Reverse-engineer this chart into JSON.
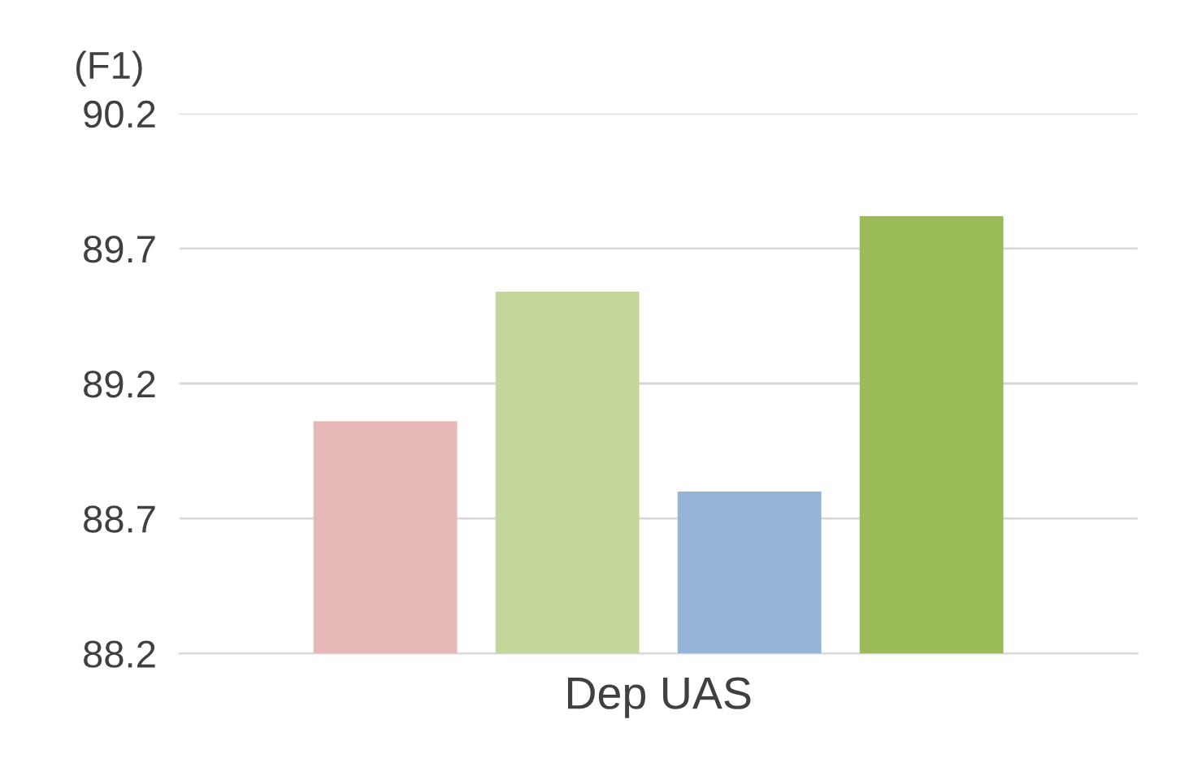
{
  "chart_data": {
    "type": "bar",
    "ylabel": "(F1)",
    "categories": [
      "Dep UAS"
    ],
    "series": [
      {
        "color": "#e6b9b8",
        "values": [
          89.06
        ]
      },
      {
        "color": "#c4d79b",
        "values": [
          89.54
        ]
      },
      {
        "color": "#95b3d7",
        "values": [
          88.8
        ]
      },
      {
        "color": "#9bbb59",
        "values": [
          89.82
        ]
      }
    ],
    "ylim": [
      88.2,
      90.2
    ],
    "yticks": [
      88.2,
      88.7,
      89.2,
      89.7,
      90.2
    ],
    "grid": "y",
    "legend": false
  }
}
